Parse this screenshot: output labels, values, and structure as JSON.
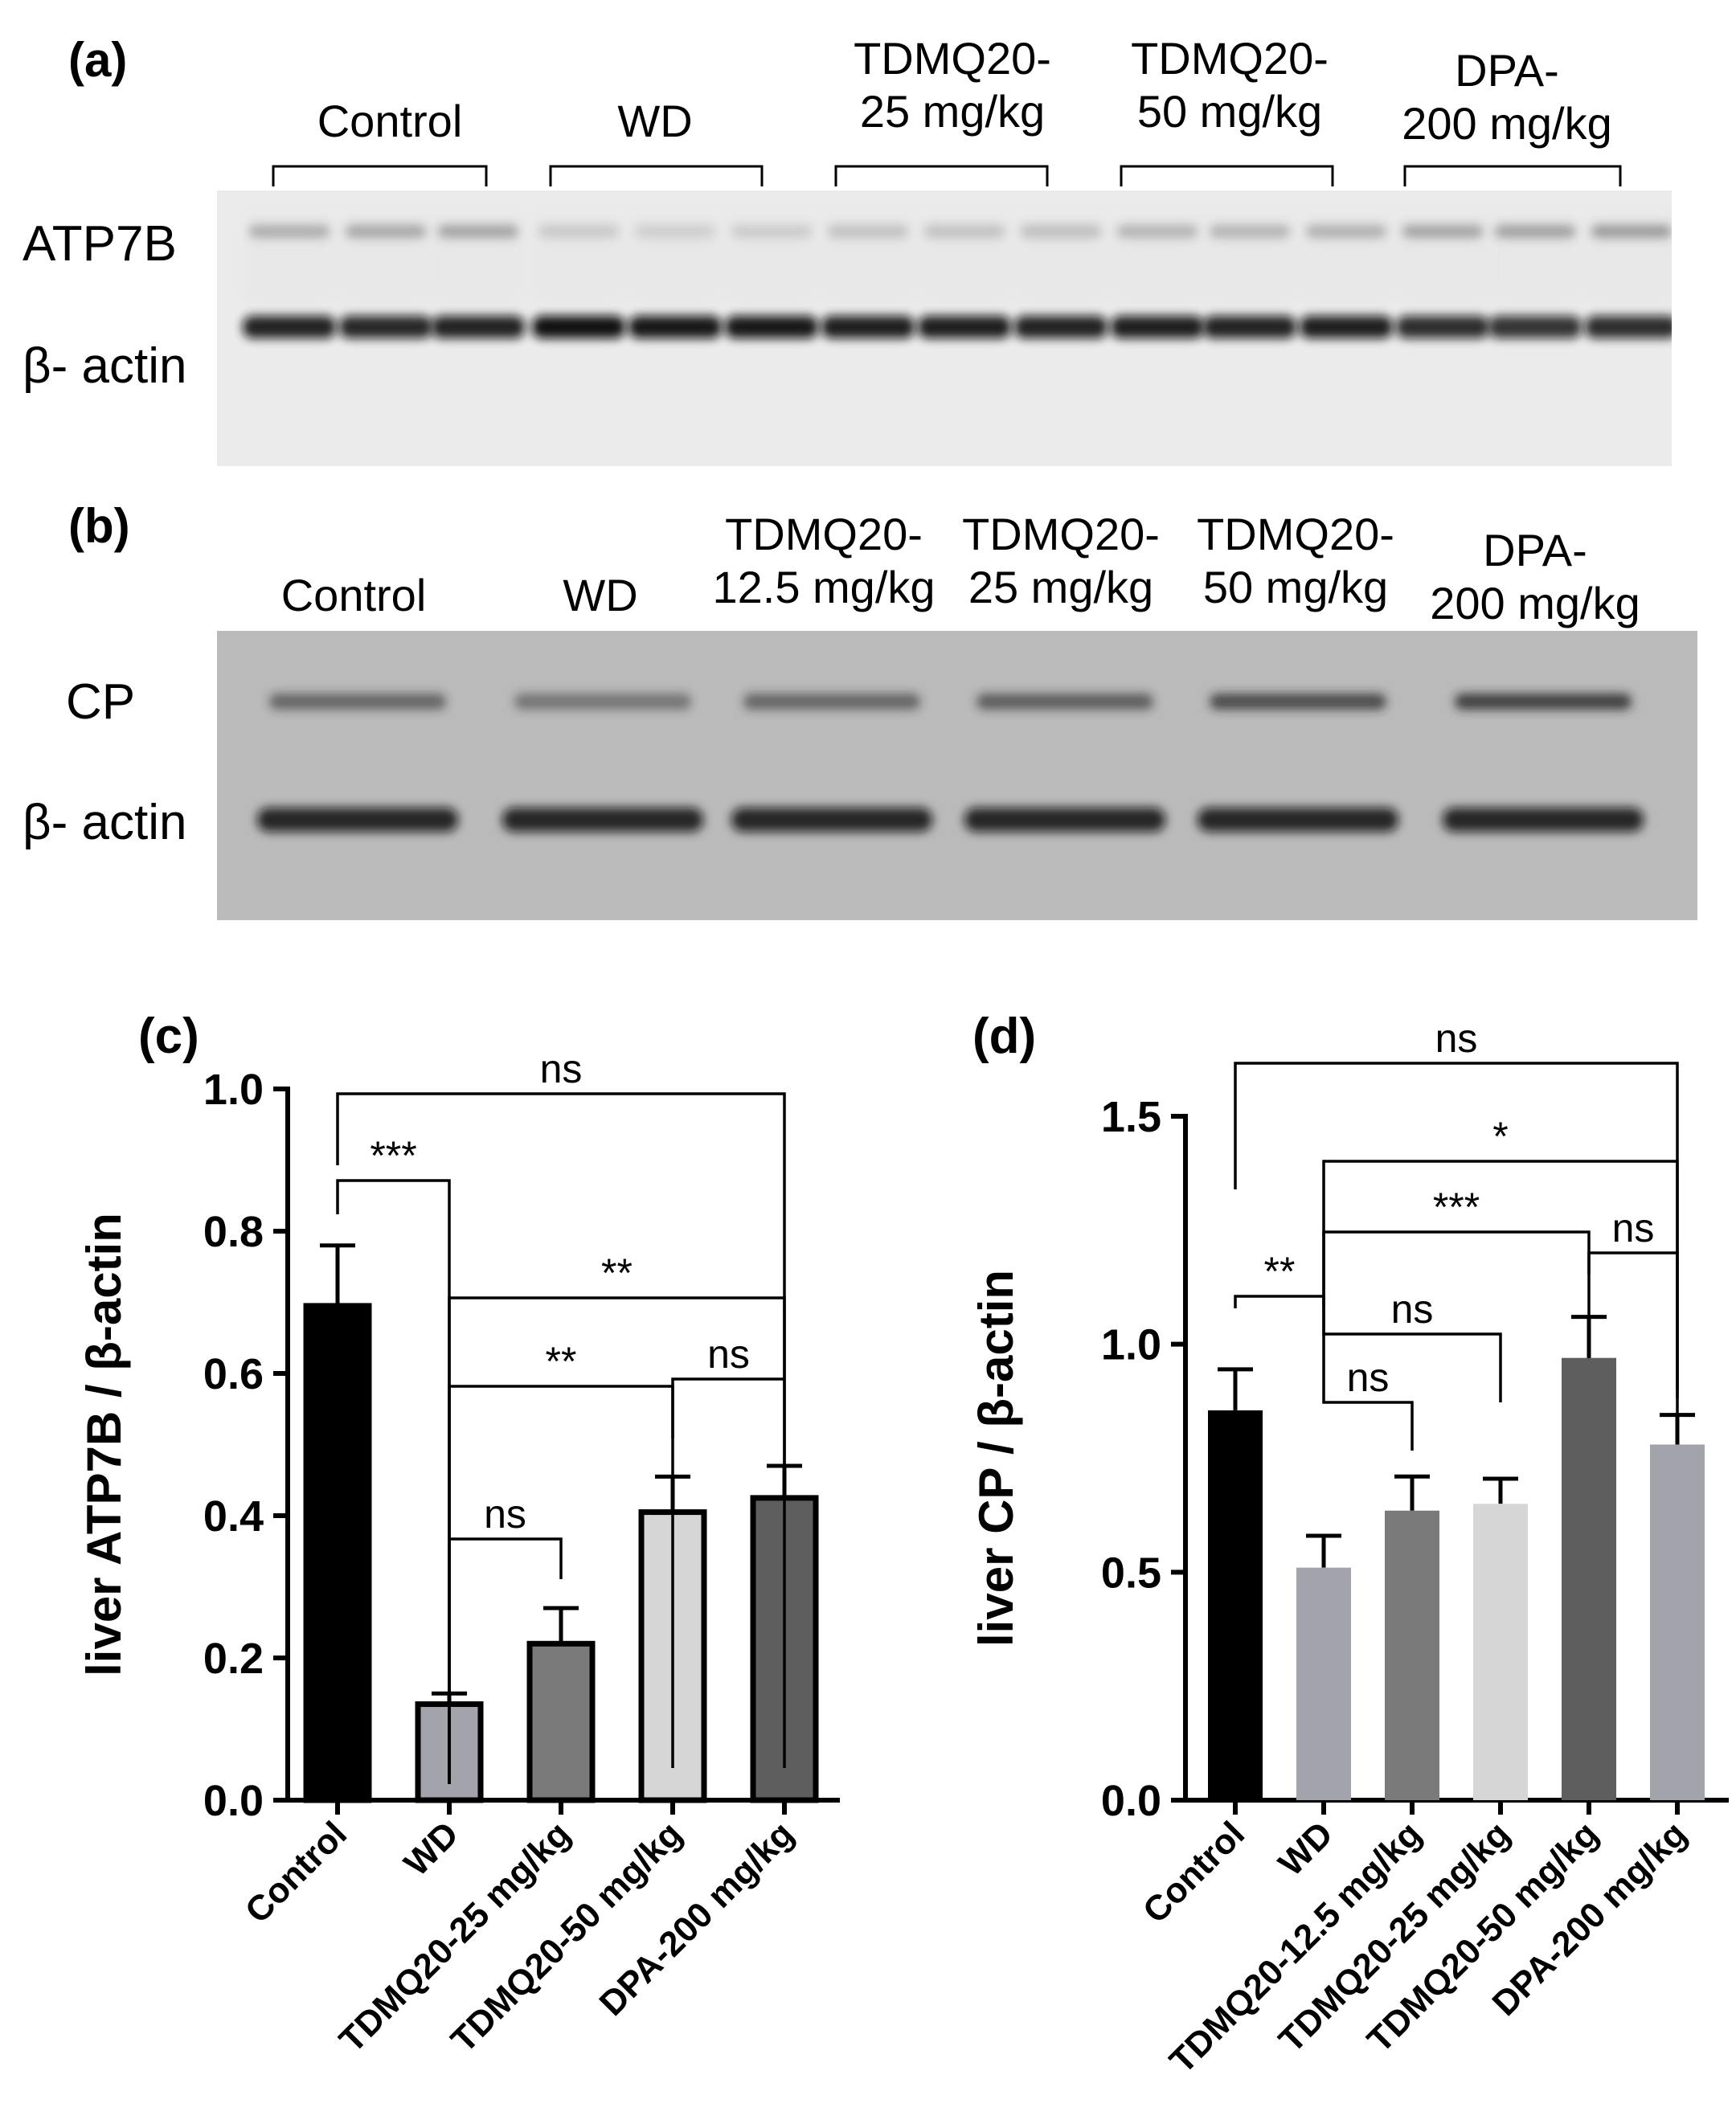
{
  "panel_a": {
    "label": "(a)",
    "groups": [
      {
        "line1": "Control",
        "line2": ""
      },
      {
        "line1": "WD",
        "line2": ""
      },
      {
        "line1": "TDMQ20-",
        "line2": "25 mg/kg"
      },
      {
        "line1": "TDMQ20-",
        "line2": "50 mg/kg"
      },
      {
        "line1": "DPA-",
        "line2": "200 mg/kg"
      }
    ],
    "rows": [
      "ATP7B",
      "β- actin"
    ]
  },
  "panel_b": {
    "label": "(b)",
    "groups": [
      {
        "line1": "Control",
        "line2": ""
      },
      {
        "line1": "WD",
        "line2": ""
      },
      {
        "line1": "TDMQ20-",
        "line2": "12.5 mg/kg"
      },
      {
        "line1": "TDMQ20-",
        "line2": "25 mg/kg"
      },
      {
        "line1": "TDMQ20-",
        "line2": "50 mg/kg"
      },
      {
        "line1": "DPA-",
        "line2": "200 mg/kg"
      }
    ],
    "rows": [
      "CP",
      "β- actin"
    ]
  },
  "chart_data": [
    {
      "panel": "(c)",
      "type": "bar",
      "ylabel": "liver ATP7B / β-actin",
      "ylim": [
        0,
        1.0
      ],
      "yticks": [
        "0.0",
        "0.2",
        "0.4",
        "0.6",
        "0.8",
        "1.0"
      ],
      "ytick_values": [
        0,
        0.2,
        0.4,
        0.6,
        0.8,
        1.0
      ],
      "categories": [
        "Control",
        "WD",
        "TDMQ20-25 mg/kg",
        "TDMQ20-50 mg/kg",
        "DPA-200 mg/kg"
      ],
      "values": [
        0.695,
        0.135,
        0.22,
        0.405,
        0.425
      ],
      "errors": [
        0.085,
        0.015,
        0.05,
        0.05,
        0.045
      ],
      "colors": [
        "#000000",
        "#a3a3ab",
        "#7a7a7a",
        "#d6d6d6",
        "#5e5e5e"
      ],
      "comparisons": [
        {
          "from": 0,
          "to": 4,
          "label": "ns"
        },
        {
          "from": 0,
          "to": 1,
          "label": "***"
        },
        {
          "from": 1,
          "to": 4,
          "label": "**"
        },
        {
          "from": 1,
          "to": 3,
          "label": "**"
        },
        {
          "from": 3,
          "to": 4,
          "label": "ns"
        },
        {
          "from": 1,
          "to": 2,
          "label": "ns"
        }
      ]
    },
    {
      "panel": "(d)",
      "type": "bar",
      "ylabel": "liver CP / β-actin",
      "ylim": [
        0,
        1.5
      ],
      "yticks": [
        "0.0",
        "0.5",
        "1.0",
        "1.5"
      ],
      "ytick_values": [
        0,
        0.5,
        1.0,
        1.5
      ],
      "categories": [
        "Control",
        "WD",
        "TDMQ20-12.5 mg/kg",
        "TDMQ20-25 mg/kg",
        "TDMQ20-50 mg/kg",
        "DPA-200 mg/kg"
      ],
      "values": [
        0.855,
        0.51,
        0.635,
        0.65,
        0.97,
        0.78
      ],
      "errors": [
        0.09,
        0.07,
        0.075,
        0.055,
        0.09,
        0.065
      ],
      "colors": [
        "#000000",
        "#a3a3ab",
        "#7a7a7a",
        "#d6d6d6",
        "#5e5e5e",
        "#a3a3ab"
      ],
      "comparisons": [
        {
          "from": 0,
          "to": 5,
          "label": "ns"
        },
        {
          "from": 1,
          "to": 5,
          "label": "*"
        },
        {
          "from": 1,
          "to": 4,
          "label": "***"
        },
        {
          "from": 4,
          "to": 5,
          "label": "ns"
        },
        {
          "from": 0,
          "to": 1,
          "label": "**"
        },
        {
          "from": 1,
          "to": 3,
          "label": "ns"
        },
        {
          "from": 1,
          "to": 2,
          "label": "ns"
        }
      ]
    }
  ]
}
